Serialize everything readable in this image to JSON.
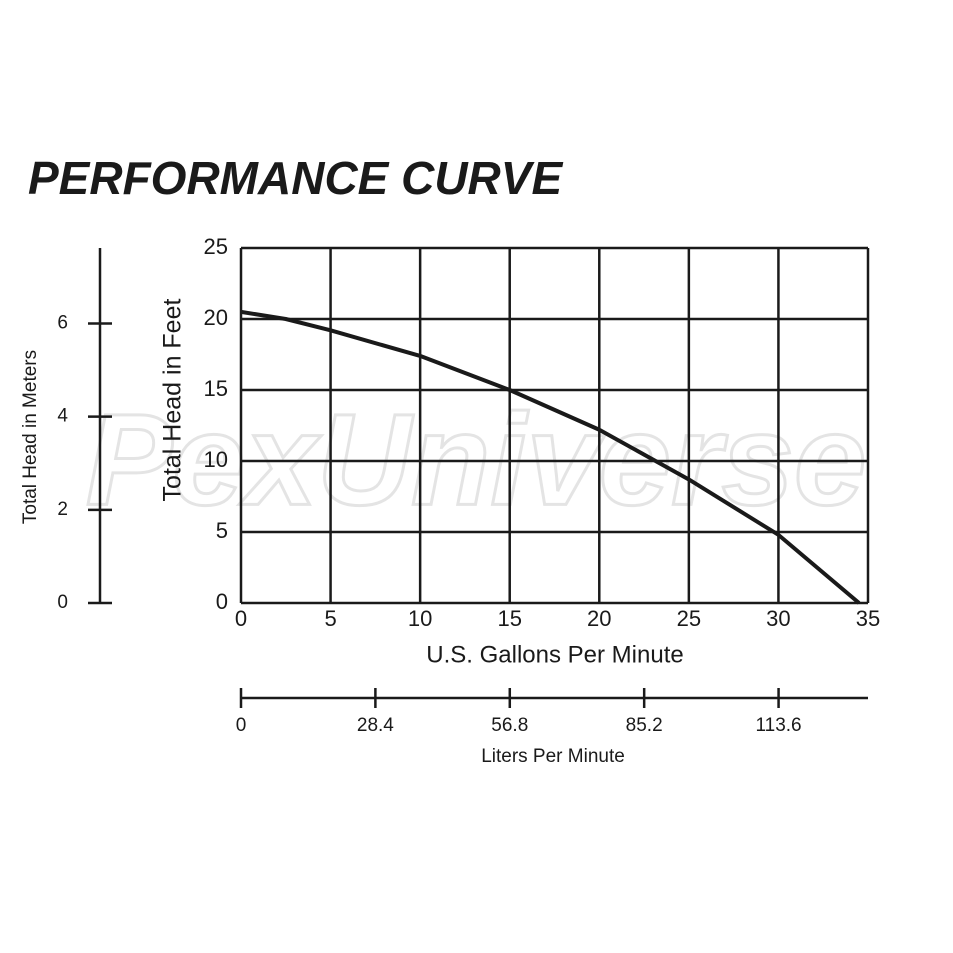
{
  "chart_data": {
    "type": "line",
    "title": "PERFORMANCE CURVE",
    "watermark": "PexUniverse",
    "xlabel": "U.S. Gallons Per Minute",
    "ylabel": "Total Head in Feet",
    "x": [
      0,
      2.5,
      5,
      10,
      15,
      20,
      25,
      30,
      34.5
    ],
    "series": [
      {
        "name": "Total Head",
        "color": "#1a1a1a",
        "values": [
          20.5,
          20,
          19.2,
          17.4,
          15,
          12.2,
          8.7,
          4.8,
          0
        ]
      }
    ],
    "xlim": [
      0,
      35
    ],
    "xticks": [
      0,
      5,
      10,
      15,
      20,
      25,
      30,
      35
    ],
    "ylim": [
      0,
      25
    ],
    "yticks": [
      0,
      5,
      10,
      15,
      20,
      25
    ],
    "grid": true,
    "y2label": "Total Head in Meters",
    "y2lim": [
      0,
      7.62
    ],
    "y2ticks": [
      0,
      2,
      4,
      6
    ],
    "x2label": "Liters Per Minute",
    "x2lim": [
      0,
      132.5
    ],
    "x2ticks": [
      0,
      28.4,
      56.8,
      85.2,
      113.6
    ]
  }
}
